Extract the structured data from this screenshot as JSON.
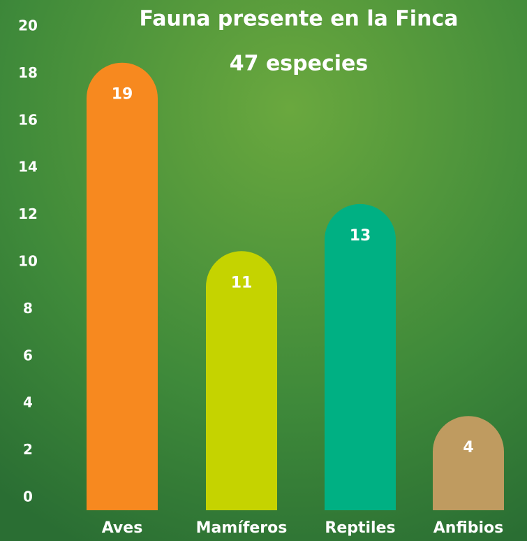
{
  "chart_data": {
    "type": "bar",
    "title": "Fauna presente en la Finca",
    "subtitle": "47 especies",
    "categories": [
      "Aves",
      "Mamíferos",
      "Reptiles",
      "Anfibios"
    ],
    "values": [
      19,
      11,
      13,
      4
    ],
    "colors": [
      "#f7891f",
      "#c5d300",
      "#00b083",
      "#bf9b60"
    ],
    "ylim": [
      0,
      20
    ],
    "yticks": [
      0,
      2,
      4,
      6,
      8,
      10,
      12,
      14,
      16,
      18,
      20
    ],
    "grid": false
  }
}
